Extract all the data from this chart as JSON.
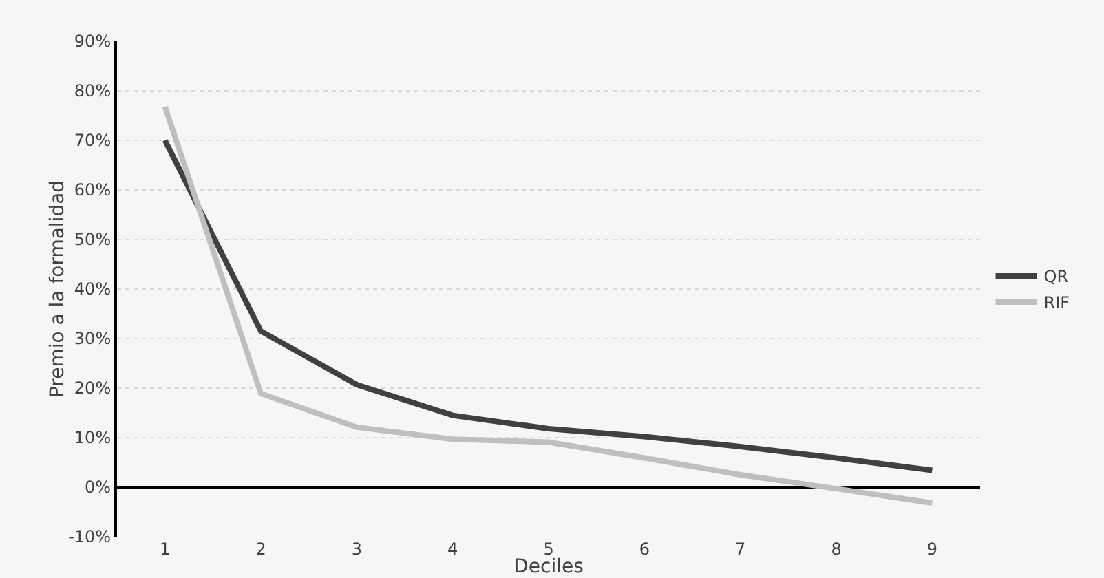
{
  "chart_data": {
    "type": "line",
    "xlabel": "Deciles",
    "ylabel": "Premio a la formalidad",
    "categories": [
      "1",
      "2",
      "3",
      "4",
      "5",
      "6",
      "7",
      "8",
      "9"
    ],
    "series": [
      {
        "name": "QR",
        "color": "#404040",
        "values": [
          70,
          31.5,
          20.7,
          14.5,
          11.8,
          10.2,
          8.2,
          5.9,
          3.4
        ]
      },
      {
        "name": "RIF",
        "color": "#bfbfbf",
        "values": [
          76.8,
          18.9,
          12.1,
          9.7,
          9.1,
          5.9,
          2.5,
          -0.3,
          -3.2
        ]
      }
    ],
    "ylim": [
      -10,
      90
    ],
    "yticks": [
      {
        "value": -10,
        "label": "-10%"
      },
      {
        "value": 0,
        "label": "0%"
      },
      {
        "value": 10,
        "label": "10%"
      },
      {
        "value": 20,
        "label": "20%"
      },
      {
        "value": 30,
        "label": "30%"
      },
      {
        "value": 40,
        "label": "40%"
      },
      {
        "value": 50,
        "label": "50%"
      },
      {
        "value": 60,
        "label": "60%"
      },
      {
        "value": 70,
        "label": "70%"
      },
      {
        "value": 80,
        "label": "80%"
      },
      {
        "value": 90,
        "label": "90%"
      }
    ],
    "grid": "y",
    "legend": "right",
    "marker": "none",
    "line_style": "solid"
  }
}
